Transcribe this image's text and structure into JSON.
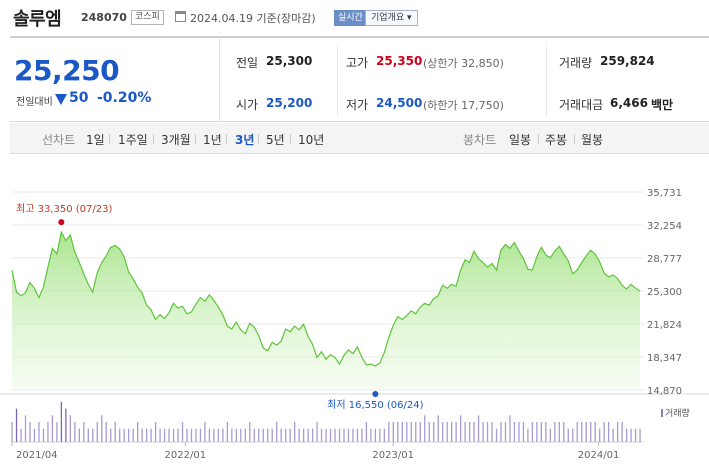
{
  "header": {
    "name": "솔루엠",
    "code": "248070",
    "market": "코스피",
    "date": "2024.04.19 기준(장마감)",
    "realtime": "실시간",
    "company": "기업개요 ▾"
  },
  "price": {
    "current": "25,250",
    "change_label": "전일대비",
    "change": "50",
    "change_pct": "-0.20%"
  },
  "stats": {
    "prev_close_label": "전일",
    "prev_close": "25,300",
    "high_label": "고가",
    "high": "25,350",
    "upper_limit": "(상한가 32,850)",
    "volume_label": "거래량",
    "volume": "259,824",
    "open_label": "시가",
    "open": "25,200",
    "low_label": "저가",
    "low": "24,500",
    "lower_limit": "(하한가 17,750)",
    "value_label": "거래대금",
    "value": "6,466",
    "value_unit": "백만"
  },
  "periods": {
    "line_label": "선차트",
    "items": [
      "1일",
      "1주일",
      "3개월",
      "1년",
      "3년",
      "5년",
      "10년"
    ],
    "active_index": 4,
    "candle_label": "봉차트",
    "candle_items": [
      "일봉",
      "주봉",
      "월봉"
    ]
  },
  "colors": {
    "accent": "#1a57c7",
    "up": "#d0021b",
    "line": "#5ec43a",
    "volume": "#8a7bb5"
  },
  "chart_data": {
    "type": "area",
    "ylim": [
      14870,
      35731
    ],
    "yticks": [
      "35,731",
      "32,254",
      "28,777",
      "25,300",
      "21,824",
      "18,347",
      "14,870"
    ],
    "yticks_values": [
      35731,
      32254,
      28777,
      25300,
      21824,
      18347,
      14870
    ],
    "xticks": [
      "2021/04",
      "2022/01",
      "2023/01",
      "2024/01"
    ],
    "high_label": "최고 33,350 (07/23)",
    "low_label": "최저 16,550 (06/24)",
    "volume_label": "거래량",
    "values": [
      27500,
      25200,
      24800,
      25100,
      26200,
      25600,
      24600,
      25700,
      27800,
      29800,
      29200,
      31500,
      30600,
      31200,
      29400,
      28300,
      27100,
      26000,
      25200,
      27200,
      28300,
      29000,
      29900,
      30100,
      29700,
      28900,
      27300,
      26600,
      25700,
      25100,
      23800,
      23300,
      22300,
      22800,
      22400,
      23000,
      24000,
      23500,
      23700,
      22900,
      23100,
      23900,
      24600,
      24200,
      24900,
      24300,
      23600,
      22800,
      21600,
      21300,
      22000,
      21200,
      20800,
      21900,
      21500,
      20600,
      19300,
      19000,
      19900,
      19600,
      20000,
      21300,
      21000,
      21600,
      21200,
      21800,
      20500,
      19700,
      18300,
      18900,
      18100,
      18600,
      18300,
      17600,
      18500,
      19100,
      18700,
      19400,
      18300,
      17500,
      17600,
      17400,
      17700,
      18800,
      20400,
      21700,
      22600,
      22300,
      22700,
      23200,
      22900,
      23600,
      24000,
      23800,
      24500,
      24800,
      25900,
      25600,
      26000,
      25800,
      27500,
      28600,
      28300,
      29500,
      28700,
      28300,
      27800,
      28200,
      27500,
      29600,
      30200,
      29800,
      30400,
      29500,
      28700,
      27600,
      27500,
      28900,
      29900,
      29100,
      28800,
      29500,
      30000,
      29200,
      28500,
      27100,
      27500,
      28300,
      29000,
      29600,
      29200,
      28400,
      27200,
      26800,
      27000,
      26600,
      25900,
      25500,
      26000,
      25600,
      25300
    ],
    "volumes": [
      3,
      5,
      2,
      4,
      3,
      2,
      3,
      2,
      3,
      4,
      3,
      6,
      5,
      4,
      3,
      2,
      3,
      2,
      2,
      3,
      4,
      3,
      2,
      3,
      2,
      2,
      2,
      2,
      3,
      2,
      2,
      2,
      3,
      2,
      2,
      2,
      2,
      2,
      3,
      2,
      2,
      2,
      2,
      3,
      2,
      2,
      2,
      2,
      3,
      2,
      2,
      2,
      2,
      3,
      2,
      2,
      2,
      2,
      2,
      3,
      2,
      2,
      2,
      3,
      2,
      2,
      2,
      2,
      3,
      2,
      2,
      2,
      2,
      2,
      2,
      2,
      2,
      2,
      2,
      3,
      2,
      2,
      2,
      2,
      3,
      3,
      3,
      3,
      3,
      3,
      3,
      3,
      4,
      3,
      3,
      4,
      3,
      3,
      3,
      3,
      4,
      3,
      3,
      3,
      4,
      3,
      3,
      3,
      2,
      3,
      3,
      4,
      3,
      3,
      3,
      2,
      3,
      3,
      3,
      3,
      2,
      3,
      3,
      3,
      2,
      2,
      3,
      3,
      3,
      3,
      3,
      2,
      3,
      3,
      2,
      3,
      3,
      2,
      2,
      2,
      2
    ]
  }
}
